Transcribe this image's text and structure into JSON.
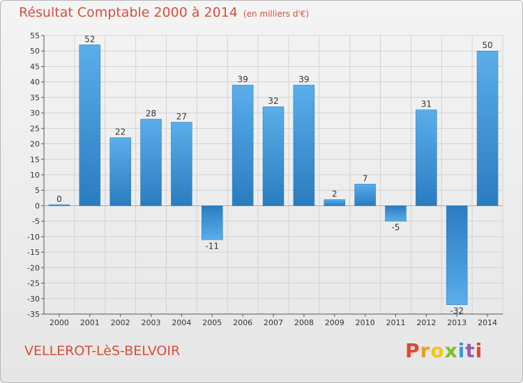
{
  "header": {
    "title": "Résultat Comptable 2000 à 2014",
    "subtitle": "(en milliers d'€)"
  },
  "footer": {
    "town": "VELLEROT-LèS-BELVOIR",
    "logo": "Proxiti"
  },
  "colors": {
    "title": "#d4503e",
    "bar_light": "#5aaeea",
    "bar_dark": "#2a7cc0",
    "axis": "#555555",
    "grid": "#d2d2d2",
    "logo": [
      "#e8432f",
      "#f29a1c",
      "#f6c515",
      "#7bbf2a",
      "#3a9bd5",
      "#9a59b5",
      "#e8432f"
    ]
  },
  "chart_data": {
    "type": "bar",
    "title": "Résultat Comptable 2000 à 2014",
    "subtitle": "(en milliers d'€)",
    "xlabel": "",
    "ylabel": "",
    "ylim": [
      -35,
      55
    ],
    "yticks": [
      55,
      50,
      45,
      40,
      35,
      30,
      25,
      20,
      15,
      10,
      5,
      0,
      -5,
      -10,
      -15,
      -20,
      -25,
      -30,
      -35
    ],
    "grid": true,
    "categories": [
      "2000",
      "2001",
      "2002",
      "2003",
      "2004",
      "2005",
      "2006",
      "2007",
      "2008",
      "2009",
      "2010",
      "2011",
      "2012",
      "2013",
      "2014"
    ],
    "values": [
      0,
      52,
      22,
      28,
      27,
      -11,
      39,
      32,
      39,
      2,
      7,
      -5,
      31,
      -32,
      50
    ]
  }
}
